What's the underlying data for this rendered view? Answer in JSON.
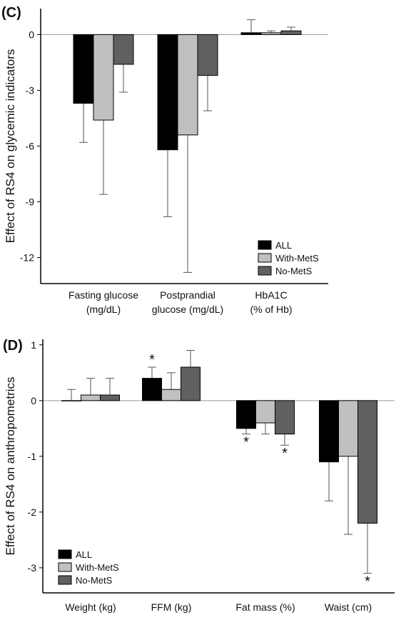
{
  "chart_data": [
    {
      "type": "bar",
      "panel": "(C)",
      "ylabel": "Effect of RS4 on glycemic indicators",
      "categories": [
        [
          "Fasting glucose",
          "(mg/dL)"
        ],
        [
          "Postprandial",
          "glucose (mg/dL)"
        ],
        [
          "HbA1C",
          "(% of Hb)"
        ]
      ],
      "ylim": [
        -13.4,
        1.4
      ],
      "yticks": [
        -12,
        -9,
        -6,
        -3,
        0
      ],
      "legend": "lower right",
      "series": [
        {
          "name": "ALL",
          "color": "#000000",
          "values": [
            -3.7,
            -6.2,
            0.1
          ],
          "errors": [
            2.1,
            3.6,
            0.7
          ]
        },
        {
          "name": "With-MetS",
          "color": "#c0c0c0",
          "values": [
            -4.6,
            -5.4,
            0.1
          ],
          "errors": [
            4.0,
            7.4,
            0.1
          ]
        },
        {
          "name": "No-MetS",
          "color": "#606060",
          "values": [
            -1.6,
            -2.2,
            0.2
          ],
          "errors": [
            1.5,
            1.9,
            0.2
          ]
        }
      ]
    },
    {
      "type": "bar",
      "panel": "(D)",
      "ylabel": "Effect of RS4 on anthropometrics",
      "categories": [
        [
          "Weight (kg)"
        ],
        [
          "FFM (kg)"
        ],
        [
          "Fat mass (%)"
        ],
        [
          "Waist (cm)"
        ]
      ],
      "ylim": [
        -3.45,
        1.1
      ],
      "yticks": [
        -3,
        -2,
        -1,
        0,
        1
      ],
      "legend": "lower left",
      "series": [
        {
          "name": "ALL",
          "color": "#000000",
          "values": [
            0,
            0.4,
            -0.5,
            -1.1
          ],
          "errors": [
            0.2,
            0.2,
            0.1,
            0.7
          ],
          "marks": [
            null,
            "*",
            "*",
            null
          ]
        },
        {
          "name": "With-MetS",
          "color": "#c0c0c0",
          "values": [
            0.1,
            0.2,
            -0.4,
            -1.0
          ],
          "errors": [
            0.3,
            0.3,
            0.2,
            1.4
          ]
        },
        {
          "name": "No-MetS",
          "color": "#606060",
          "values": [
            0.1,
            0.6,
            -0.6,
            -2.2
          ],
          "errors": [
            0.3,
            0.3,
            0.2,
            0.9
          ],
          "marks": [
            null,
            null,
            "*",
            "*"
          ]
        }
      ]
    }
  ]
}
